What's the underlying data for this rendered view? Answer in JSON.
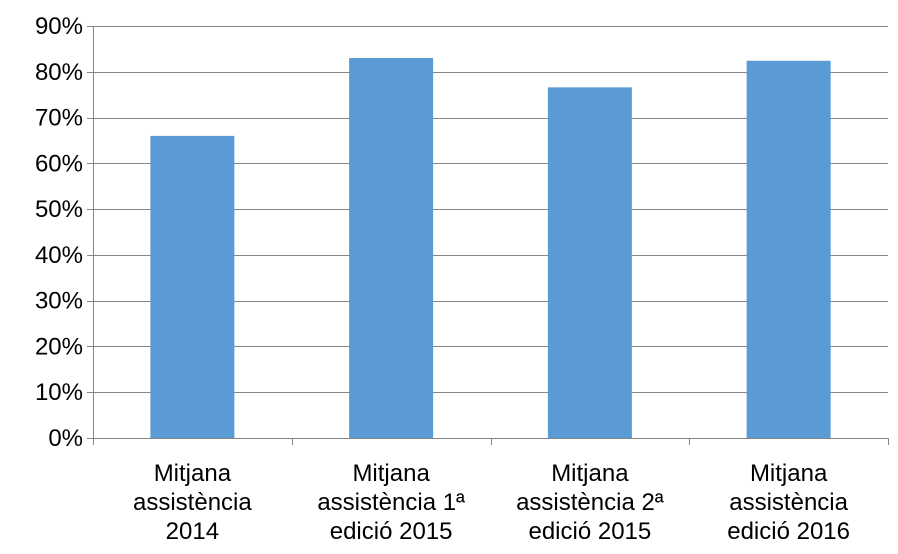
{
  "colors": {
    "bar": "#5B9BD5",
    "gridline": "#868686",
    "axis": "#868686",
    "background": "#FFFFFF",
    "text": "#000000"
  },
  "chart_data": {
    "type": "bar",
    "title": "",
    "xlabel": "",
    "ylabel": "",
    "ylim": [
      0,
      90
    ],
    "y_unit": "%",
    "y_ticks": [
      0,
      10,
      20,
      30,
      40,
      50,
      60,
      70,
      80,
      90
    ],
    "y_tick_labels": [
      "0%",
      "10%",
      "20%",
      "30%",
      "40%",
      "50%",
      "60%",
      "70%",
      "80%",
      "90%"
    ],
    "grid": true,
    "legend": "none",
    "categories": [
      [
        "Mitjana",
        "assistència",
        "2014"
      ],
      [
        "Mitjana",
        "assistència 1ª",
        "edició 2015"
      ],
      [
        "Mitjana",
        "assistència 2ª",
        "edició 2015"
      ],
      [
        "Mitjana",
        "assistència",
        "edició 2016"
      ]
    ],
    "values": [
      66,
      83,
      76.6,
      82.4
    ]
  }
}
